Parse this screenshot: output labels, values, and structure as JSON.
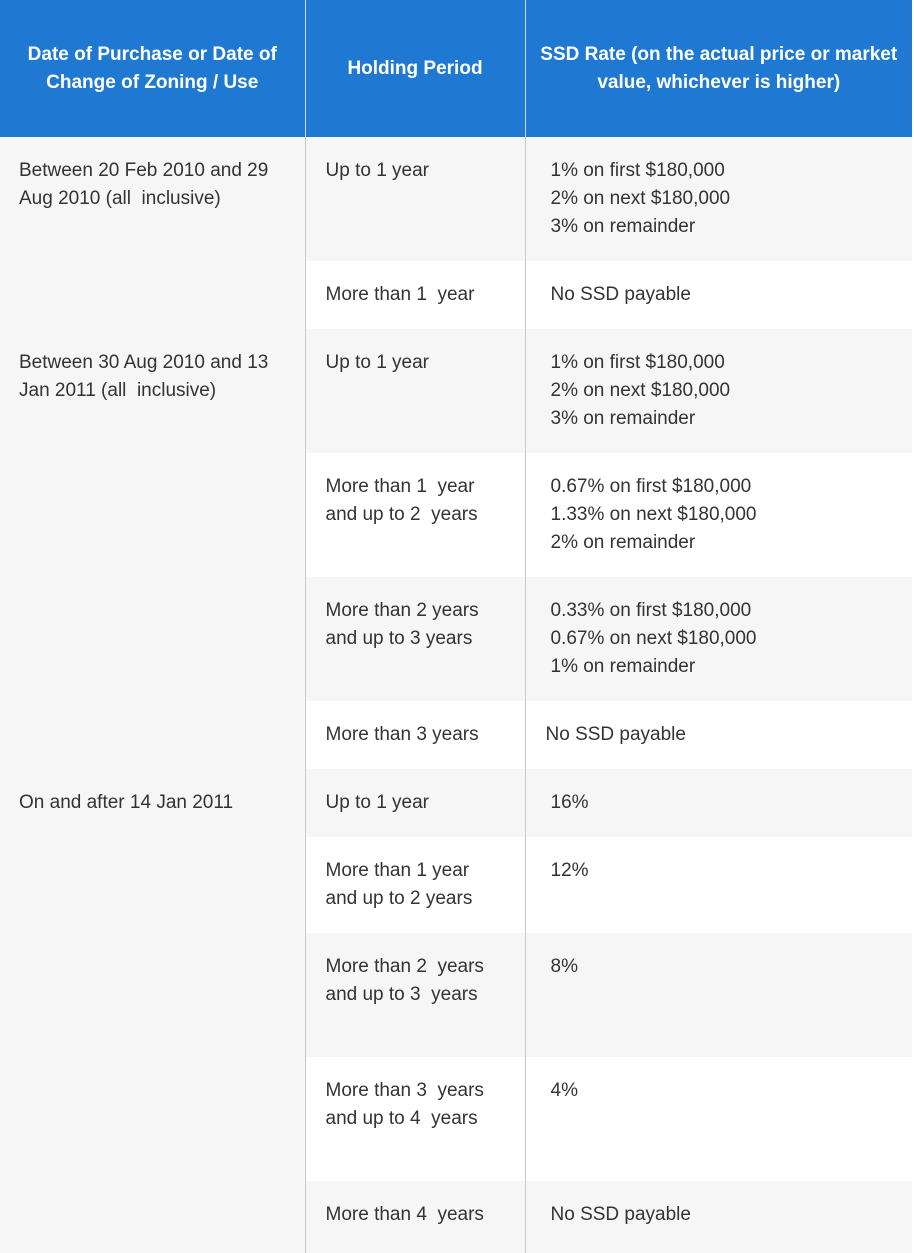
{
  "table": {
    "headers": [
      "Date of Purchase or Date of Change of Zoning / Use",
      "Holding Period",
      "SSD Rate (on the actual price or market value, whichever is higher)"
    ],
    "groups": [
      {
        "date_lines": [
          "Between 20 Feb 2010 and 29",
          "Aug 2010 (all  inclusive)"
        ],
        "rows": [
          {
            "period": [
              "Up to 1 year"
            ],
            "rate": [
              "1% on first $180,000",
              "2% on next $180,000",
              "3% on remainder"
            ]
          },
          {
            "period": [
              "More than 1  year"
            ],
            "rate": [
              "No SSD payable"
            ]
          }
        ]
      },
      {
        "date_lines": [
          "Between 30 Aug 2010 and 13",
          "Jan 2011 (all  inclusive)"
        ],
        "rows": [
          {
            "period": [
              "Up to 1 year"
            ],
            "rate": [
              "1% on first $180,000",
              "2% on next $180,000",
              "3% on remainder"
            ]
          },
          {
            "period": [
              "More than 1  year",
              "and up to 2  years"
            ],
            "rate": [
              "0.67% on first $180,000",
              "1.33% on next $180,000",
              "2% on remainder"
            ]
          },
          {
            "period": [
              "More than 2 years",
              "and up to 3 years"
            ],
            "rate": [
              "0.33% on first $180,000",
              "0.67% on next $180,000",
              "1% on remainder"
            ]
          },
          {
            "period": [
              "More than 3 years"
            ],
            "rate": [
              "No SSD payable"
            ]
          }
        ]
      },
      {
        "date_lines": [
          "On and after 14 Jan 2011"
        ],
        "rows": [
          {
            "period": [
              "Up to 1 year"
            ],
            "rate": [
              "16%"
            ]
          },
          {
            "period": [
              "More than 1 year",
              "and up to 2 years"
            ],
            "rate": [
              "12%"
            ]
          },
          {
            "period": [
              "More than 2  years",
              "and up to 3  years"
            ],
            "rate": [
              "8%"
            ]
          },
          {
            "period": [
              "More than 3  years",
              "and up to 4  years"
            ],
            "rate": [
              "4%"
            ]
          },
          {
            "period": [
              "More than 4  years"
            ],
            "rate": [
              "No SSD payable"
            ]
          }
        ]
      }
    ]
  }
}
